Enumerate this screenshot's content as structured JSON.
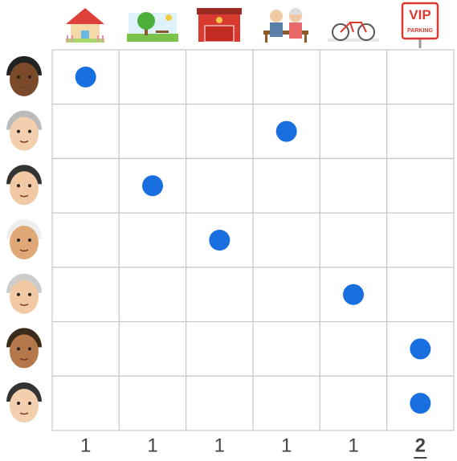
{
  "puzzle": {
    "rows": 7,
    "columns": 6,
    "placements": [
      0,
      3,
      1,
      2,
      4,
      5,
      5
    ],
    "column_counts": [
      1,
      1,
      1,
      1,
      1,
      2
    ],
    "highlighted_column": 5,
    "vip_sign": {
      "title": "VIP",
      "subtitle": "PARKING"
    }
  }
}
